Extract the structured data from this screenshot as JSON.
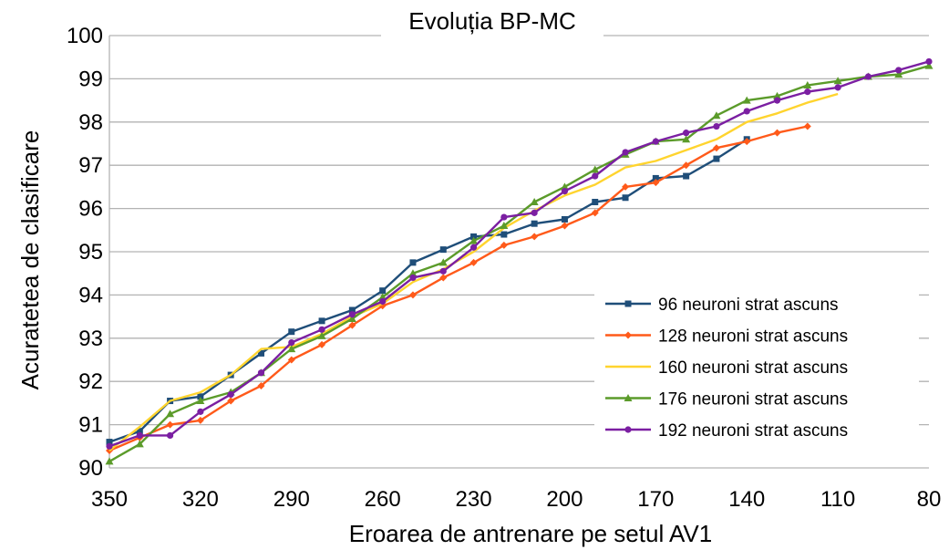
{
  "chart_data": {
    "type": "line",
    "title": "Evoluția BP-MC",
    "xlabel": "Eroarea de antrenare pe setul AV1",
    "ylabel": "Acuratetea de clasificare",
    "xlim": [
      350,
      80
    ],
    "ylim": [
      90,
      100
    ],
    "x_ticks": [
      350,
      320,
      290,
      260,
      230,
      200,
      170,
      140,
      110,
      80
    ],
    "y_ticks": [
      90,
      91,
      92,
      93,
      94,
      95,
      96,
      97,
      98,
      99,
      100
    ],
    "grid": "horizontal",
    "legend_position": "bottom-right",
    "series": [
      {
        "name": "96 neuroni strat ascuns",
        "color": "#1f4e79",
        "marker": "square",
        "x": [
          350,
          340,
          330,
          320,
          310,
          300,
          290,
          280,
          270,
          260,
          250,
          240,
          230,
          220,
          210,
          200,
          190,
          180,
          170,
          160,
          150,
          140
        ],
        "y": [
          90.6,
          90.85,
          91.55,
          91.65,
          92.15,
          92.65,
          93.15,
          93.4,
          93.65,
          94.1,
          94.75,
          95.05,
          95.35,
          95.4,
          95.65,
          95.75,
          96.15,
          96.25,
          96.7,
          96.75,
          97.15,
          97.6
        ]
      },
      {
        "name": "128 neuroni strat ascuns",
        "color": "#ff5a1a",
        "marker": "diamond",
        "x": [
          350,
          340,
          330,
          320,
          310,
          300,
          290,
          280,
          270,
          260,
          250,
          240,
          230,
          220,
          210,
          200,
          190,
          180,
          170,
          160,
          150,
          140,
          130,
          120
        ],
        "y": [
          90.4,
          90.7,
          91.0,
          91.1,
          91.55,
          91.9,
          92.5,
          92.85,
          93.3,
          93.75,
          94.0,
          94.4,
          94.75,
          95.15,
          95.35,
          95.6,
          95.9,
          96.5,
          96.6,
          97.0,
          97.4,
          97.55,
          97.75,
          97.9
        ]
      },
      {
        "name": "160 neuroni strat ascuns",
        "color": "#ffd42e",
        "marker": "none",
        "x": [
          350,
          340,
          330,
          320,
          310,
          300,
          290,
          280,
          270,
          260,
          250,
          240,
          230,
          220,
          210,
          200,
          190,
          180,
          170,
          160,
          150,
          140,
          130,
          120,
          110
        ],
        "y": [
          90.4,
          90.95,
          91.55,
          91.75,
          92.15,
          92.75,
          92.8,
          93.1,
          93.5,
          93.8,
          94.3,
          94.6,
          95.0,
          95.55,
          95.95,
          96.3,
          96.55,
          96.95,
          97.1,
          97.35,
          97.6,
          98.0,
          98.2,
          98.45,
          98.65
        ]
      },
      {
        "name": "176 neuroni strat ascuns",
        "color": "#5b9b2a",
        "marker": "triangle",
        "x": [
          350,
          340,
          330,
          320,
          310,
          300,
          290,
          280,
          270,
          260,
          250,
          240,
          230,
          220,
          210,
          200,
          190,
          180,
          170,
          160,
          150,
          140,
          130,
          120,
          110,
          100,
          90,
          80
        ],
        "y": [
          90.15,
          90.55,
          91.25,
          91.55,
          91.75,
          92.2,
          92.75,
          93.05,
          93.45,
          93.95,
          94.5,
          94.75,
          95.25,
          95.6,
          96.15,
          96.5,
          96.9,
          97.25,
          97.55,
          97.6,
          98.15,
          98.5,
          98.6,
          98.85,
          98.95,
          99.05,
          99.1,
          99.3
        ]
      },
      {
        "name": "192 neuroni strat ascuns",
        "color": "#7b1fa2",
        "marker": "circle",
        "x": [
          350,
          340,
          330,
          320,
          310,
          300,
          290,
          280,
          270,
          260,
          250,
          240,
          230,
          220,
          210,
          200,
          190,
          180,
          170,
          160,
          150,
          140,
          130,
          120,
          110,
          100,
          90,
          80
        ],
        "y": [
          90.5,
          90.75,
          90.75,
          91.3,
          91.7,
          92.2,
          92.9,
          93.2,
          93.55,
          93.85,
          94.4,
          94.55,
          95.1,
          95.8,
          95.9,
          96.4,
          96.75,
          97.3,
          97.55,
          97.75,
          97.9,
          98.25,
          98.5,
          98.7,
          98.8,
          99.05,
          99.2,
          99.4
        ]
      }
    ]
  }
}
